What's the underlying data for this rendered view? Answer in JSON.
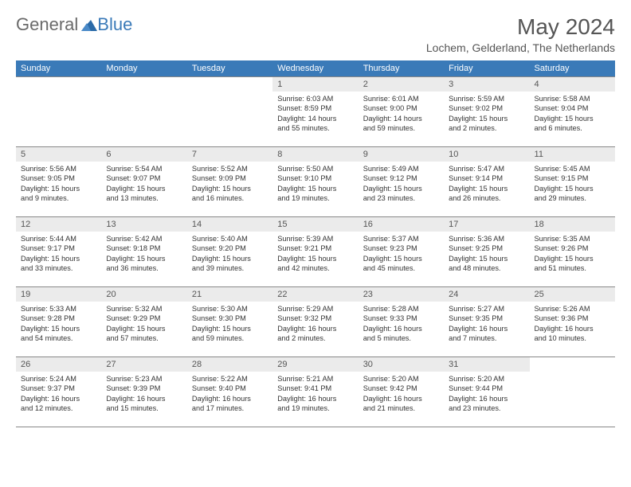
{
  "logo": {
    "text1": "General",
    "text2": "Blue"
  },
  "title": "May 2024",
  "location": "Lochem, Gelderland, The Netherlands",
  "header_bg": "#3a7ab8",
  "header_fg": "#ffffff",
  "daynum_bg": "#ebebeb",
  "border_color": "#888888",
  "weekdays": [
    "Sunday",
    "Monday",
    "Tuesday",
    "Wednesday",
    "Thursday",
    "Friday",
    "Saturday"
  ],
  "weeks": [
    [
      null,
      null,
      null,
      {
        "n": "1",
        "sr": "6:03 AM",
        "ss": "8:59 PM",
        "dh": 14,
        "dm": 55
      },
      {
        "n": "2",
        "sr": "6:01 AM",
        "ss": "9:00 PM",
        "dh": 14,
        "dm": 59
      },
      {
        "n": "3",
        "sr": "5:59 AM",
        "ss": "9:02 PM",
        "dh": 15,
        "dm": 2
      },
      {
        "n": "4",
        "sr": "5:58 AM",
        "ss": "9:04 PM",
        "dh": 15,
        "dm": 6
      }
    ],
    [
      {
        "n": "5",
        "sr": "5:56 AM",
        "ss": "9:05 PM",
        "dh": 15,
        "dm": 9
      },
      {
        "n": "6",
        "sr": "5:54 AM",
        "ss": "9:07 PM",
        "dh": 15,
        "dm": 13
      },
      {
        "n": "7",
        "sr": "5:52 AM",
        "ss": "9:09 PM",
        "dh": 15,
        "dm": 16
      },
      {
        "n": "8",
        "sr": "5:50 AM",
        "ss": "9:10 PM",
        "dh": 15,
        "dm": 19
      },
      {
        "n": "9",
        "sr": "5:49 AM",
        "ss": "9:12 PM",
        "dh": 15,
        "dm": 23
      },
      {
        "n": "10",
        "sr": "5:47 AM",
        "ss": "9:14 PM",
        "dh": 15,
        "dm": 26
      },
      {
        "n": "11",
        "sr": "5:45 AM",
        "ss": "9:15 PM",
        "dh": 15,
        "dm": 29
      }
    ],
    [
      {
        "n": "12",
        "sr": "5:44 AM",
        "ss": "9:17 PM",
        "dh": 15,
        "dm": 33
      },
      {
        "n": "13",
        "sr": "5:42 AM",
        "ss": "9:18 PM",
        "dh": 15,
        "dm": 36
      },
      {
        "n": "14",
        "sr": "5:40 AM",
        "ss": "9:20 PM",
        "dh": 15,
        "dm": 39
      },
      {
        "n": "15",
        "sr": "5:39 AM",
        "ss": "9:21 PM",
        "dh": 15,
        "dm": 42
      },
      {
        "n": "16",
        "sr": "5:37 AM",
        "ss": "9:23 PM",
        "dh": 15,
        "dm": 45
      },
      {
        "n": "17",
        "sr": "5:36 AM",
        "ss": "9:25 PM",
        "dh": 15,
        "dm": 48
      },
      {
        "n": "18",
        "sr": "5:35 AM",
        "ss": "9:26 PM",
        "dh": 15,
        "dm": 51
      }
    ],
    [
      {
        "n": "19",
        "sr": "5:33 AM",
        "ss": "9:28 PM",
        "dh": 15,
        "dm": 54
      },
      {
        "n": "20",
        "sr": "5:32 AM",
        "ss": "9:29 PM",
        "dh": 15,
        "dm": 57
      },
      {
        "n": "21",
        "sr": "5:30 AM",
        "ss": "9:30 PM",
        "dh": 15,
        "dm": 59
      },
      {
        "n": "22",
        "sr": "5:29 AM",
        "ss": "9:32 PM",
        "dh": 16,
        "dm": 2
      },
      {
        "n": "23",
        "sr": "5:28 AM",
        "ss": "9:33 PM",
        "dh": 16,
        "dm": 5
      },
      {
        "n": "24",
        "sr": "5:27 AM",
        "ss": "9:35 PM",
        "dh": 16,
        "dm": 7
      },
      {
        "n": "25",
        "sr": "5:26 AM",
        "ss": "9:36 PM",
        "dh": 16,
        "dm": 10
      }
    ],
    [
      {
        "n": "26",
        "sr": "5:24 AM",
        "ss": "9:37 PM",
        "dh": 16,
        "dm": 12
      },
      {
        "n": "27",
        "sr": "5:23 AM",
        "ss": "9:39 PM",
        "dh": 16,
        "dm": 15
      },
      {
        "n": "28",
        "sr": "5:22 AM",
        "ss": "9:40 PM",
        "dh": 16,
        "dm": 17
      },
      {
        "n": "29",
        "sr": "5:21 AM",
        "ss": "9:41 PM",
        "dh": 16,
        "dm": 19
      },
      {
        "n": "30",
        "sr": "5:20 AM",
        "ss": "9:42 PM",
        "dh": 16,
        "dm": 21
      },
      {
        "n": "31",
        "sr": "5:20 AM",
        "ss": "9:44 PM",
        "dh": 16,
        "dm": 23
      },
      null
    ]
  ]
}
